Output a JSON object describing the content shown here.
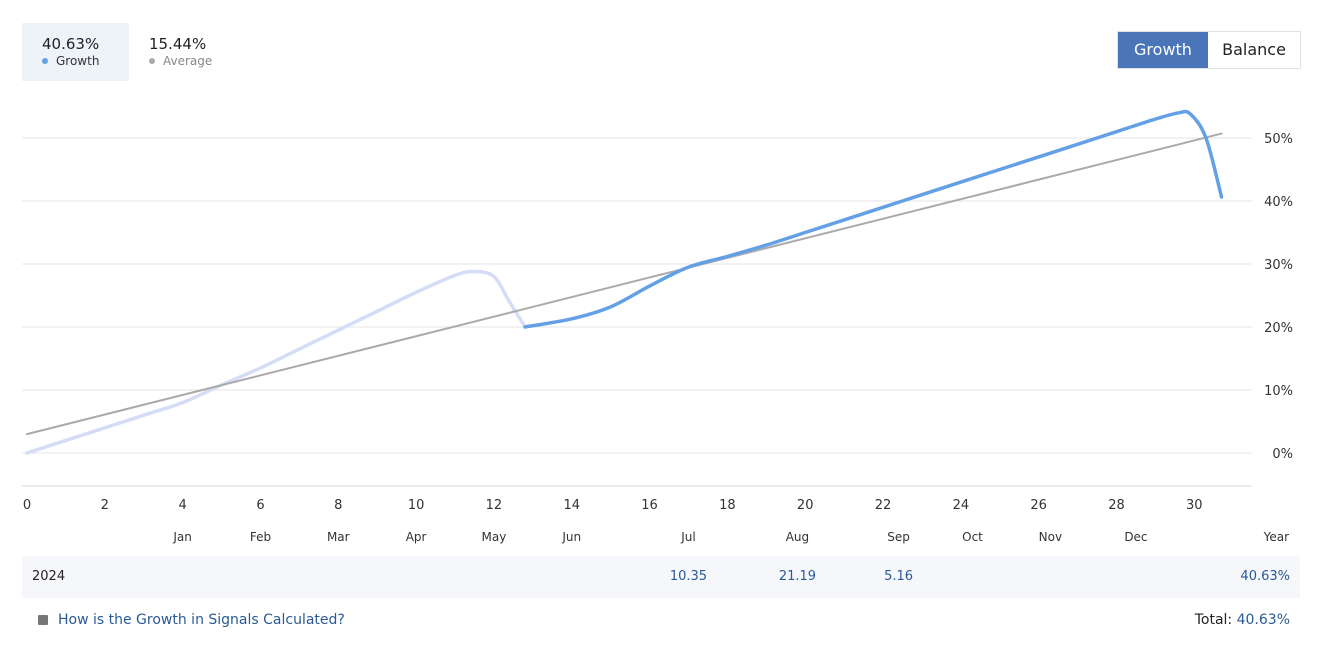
{
  "legend": {
    "growth": {
      "value": "40.63%",
      "label": "Growth"
    },
    "average": {
      "value": "15.44%",
      "label": "Average"
    }
  },
  "toggle": {
    "growth_label": "Growth",
    "balance_label": "Balance",
    "active": "Growth"
  },
  "colors": {
    "growth_line": "#64a0e6",
    "growth_faded": "#d4dcf6",
    "average_line": "#aaaaaa",
    "accent": "#4a76b9",
    "link": "#2a5a96"
  },
  "chart_data": {
    "type": "line",
    "x_ticks": [
      0,
      2,
      4,
      6,
      8,
      10,
      12,
      14,
      16,
      18,
      20,
      22,
      24,
      26,
      28,
      30
    ],
    "y_ticks": [
      "0%",
      "10%",
      "20%",
      "30%",
      "40%",
      "50%"
    ],
    "month_labels": [
      {
        "label": "Jan",
        "x": 4
      },
      {
        "label": "Feb",
        "x": 6
      },
      {
        "label": "Mar",
        "x": 8
      },
      {
        "label": "Apr",
        "x": 10
      },
      {
        "label": "May",
        "x": 12
      },
      {
        "label": "Jun",
        "x": 14
      },
      {
        "label": "Jul",
        "x": 17
      },
      {
        "label": "Aug",
        "x": 19.8
      },
      {
        "label": "Sep",
        "x": 22.4
      },
      {
        "label": "Oct",
        "x": 24.3
      },
      {
        "label": "Nov",
        "x": 26.3
      },
      {
        "label": "Dec",
        "x": 28.5
      }
    ],
    "year_label": "Year",
    "xlim": [
      0,
      31.2
    ],
    "ylim": [
      -5,
      55
    ],
    "grid": true,
    "series": [
      {
        "name": "Growth",
        "style": "faded",
        "x": [
          0,
          1,
          2,
          3,
          4,
          5,
          6,
          7,
          8,
          9,
          10,
          11,
          11.5,
          12,
          12.4,
          12.8
        ],
        "values": [
          0,
          2,
          4,
          6,
          8,
          10.8,
          13.5,
          16.5,
          19.5,
          22.5,
          25.5,
          28.2,
          28.8,
          28,
          24,
          20
        ]
      },
      {
        "name": "Growth",
        "style": "solid",
        "x": [
          12.8,
          14,
          15,
          16,
          17,
          18,
          19,
          20,
          21,
          22,
          23,
          24,
          25,
          26,
          27,
          28,
          29,
          29.6,
          29.9,
          30.3,
          30.7
        ],
        "values": [
          20,
          21.3,
          23.2,
          26.5,
          29.5,
          31.2,
          33,
          35,
          37,
          39,
          41,
          43,
          45,
          47,
          49,
          51,
          53,
          54,
          53.8,
          50,
          40.63
        ]
      },
      {
        "name": "Average",
        "style": "trend",
        "x": [
          0,
          30.7
        ],
        "values": [
          3,
          50.7
        ]
      }
    ]
  },
  "table": {
    "year": "2024",
    "cells": [
      {
        "value": "10.35",
        "x": 17
      },
      {
        "value": "21.19",
        "x": 19.8
      },
      {
        "value": "5.16",
        "x": 22.4
      }
    ],
    "total": "40.63%"
  },
  "footer": {
    "link_text": "How is the Growth in Signals Calculated?",
    "total_label": "Total:",
    "total_value": "40.63%"
  }
}
